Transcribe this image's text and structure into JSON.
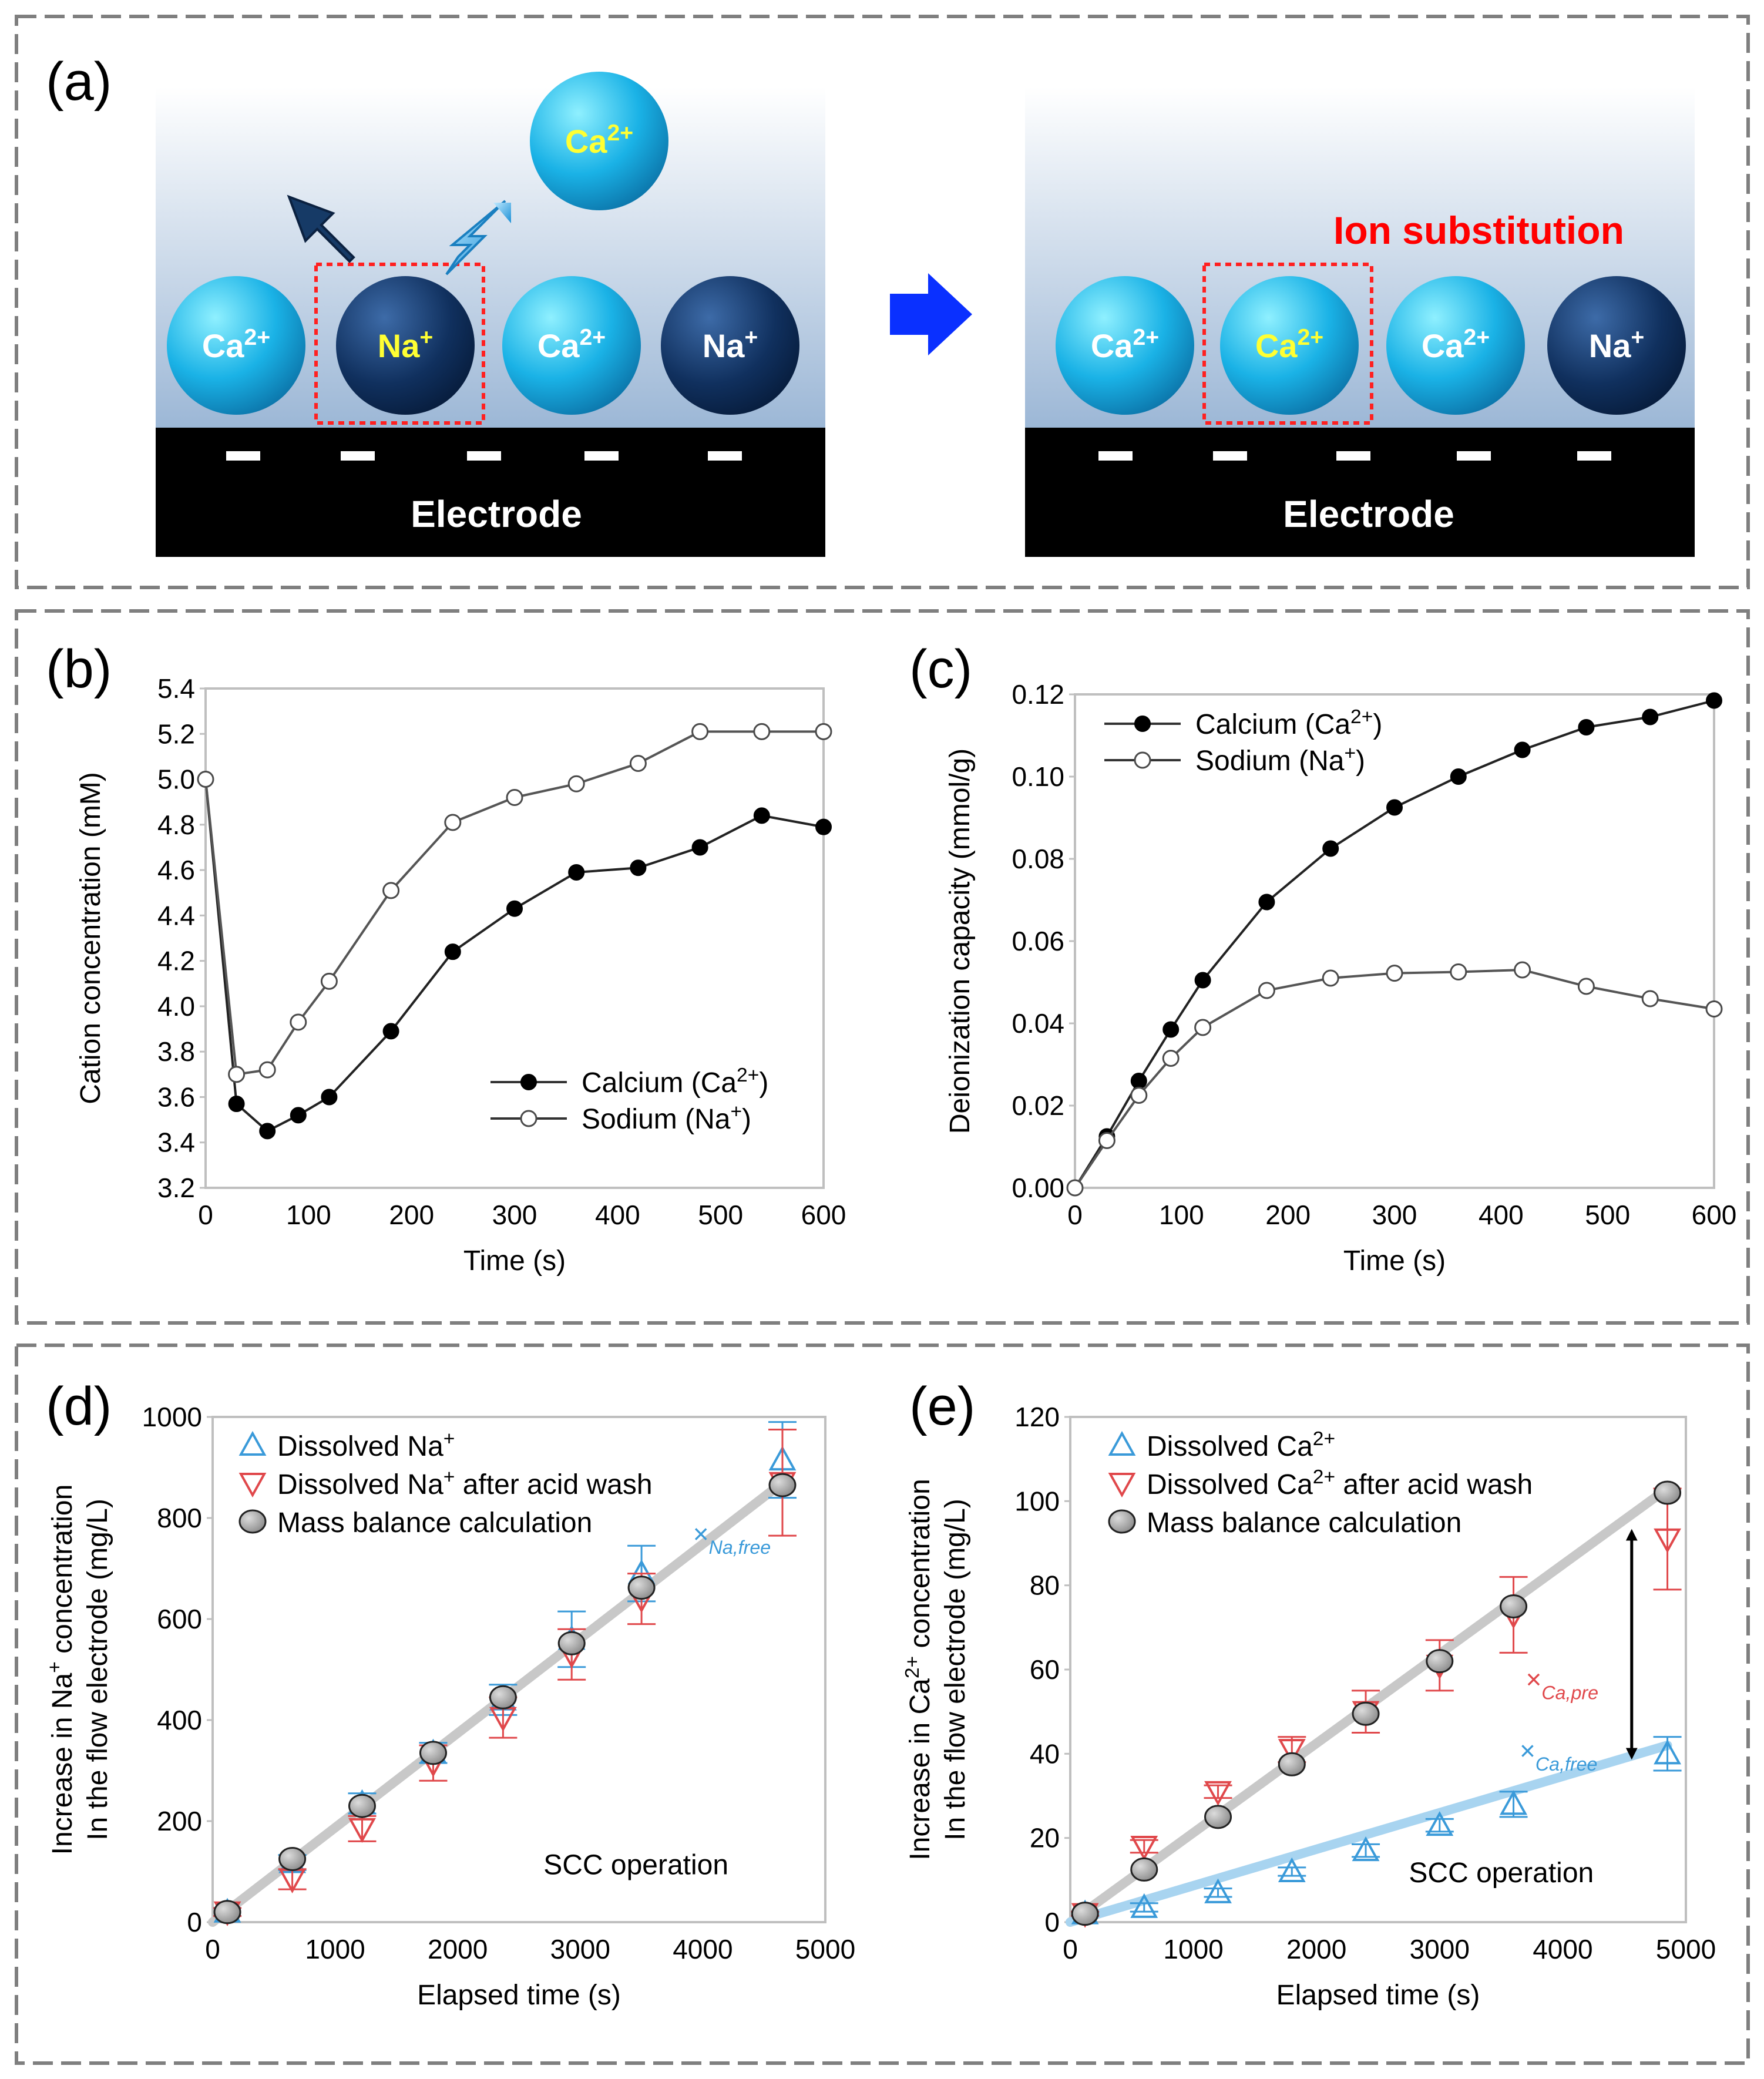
{
  "panels": {
    "a": {
      "label": "(a)",
      "electrode_label": "Electrode",
      "annotation": "Ion substitution",
      "incoming_ion": "Ca2+",
      "before_ions": [
        "Ca2+",
        "Na+",
        "Ca2+",
        "Na+"
      ],
      "after_ions": [
        "Ca2+",
        "Ca2+",
        "Ca2+",
        "Na+"
      ]
    },
    "b": {
      "label": "(b)"
    },
    "c": {
      "label": "(c)"
    },
    "d": {
      "label": "(d)",
      "note": "SCC operation",
      "annotation": "XNa,free"
    },
    "e": {
      "label": "(e)",
      "note": "SCC operation",
      "annotation_pre": "XCa,pre",
      "annotation_free": "XCa,free"
    }
  },
  "colors": {
    "calcium_ball": "#1ab2e6",
    "sodium_ball": "#10305e",
    "highlight": "#ffff33",
    "annotation_red": "#ff0000",
    "arrow_blue": "#0033ff",
    "triangle_blue": "#3a9ad9",
    "triangle_red": "#e0484b",
    "fit_gray": "#c8c8c8",
    "fit_blue": "#a8d4f0"
  },
  "chart_data": [
    {
      "id": "b",
      "type": "line",
      "xlabel": "Time (s)",
      "ylabel": "Cation concentration (mM)",
      "xlim": [
        0,
        600
      ],
      "ylim": [
        3.2,
        5.4
      ],
      "xticks": [
        0,
        100,
        200,
        300,
        400,
        500,
        600
      ],
      "yticks": [
        3.2,
        3.4,
        3.6,
        3.8,
        4.0,
        4.2,
        4.4,
        4.6,
        4.8,
        5.0,
        5.2,
        5.4
      ],
      "ytick_decimals": 1,
      "legend_position": "lower-right",
      "series": [
        {
          "name": "Calcium (Ca2+)",
          "marker": "filled-circle",
          "x": [
            0,
            30,
            60,
            90,
            120,
            180,
            240,
            300,
            360,
            420,
            480,
            540,
            600
          ],
          "y": [
            5.0,
            3.57,
            3.45,
            3.52,
            3.6,
            3.89,
            4.24,
            4.43,
            4.59,
            4.61,
            4.7,
            4.84,
            4.79
          ]
        },
        {
          "name": "Sodium (Na+)",
          "marker": "open-circle",
          "x": [
            0,
            30,
            60,
            90,
            120,
            180,
            240,
            300,
            360,
            420,
            480,
            540,
            600
          ],
          "y": [
            5.0,
            3.7,
            3.72,
            3.93,
            4.11,
            4.51,
            4.81,
            4.92,
            4.98,
            5.07,
            5.21,
            5.21,
            5.21
          ]
        }
      ]
    },
    {
      "id": "c",
      "type": "line",
      "xlabel": "Time (s)",
      "ylabel": "Deionization capacity (mmol/g)",
      "xlim": [
        0,
        600
      ],
      "ylim": [
        0,
        0.12
      ],
      "xticks": [
        0,
        100,
        200,
        300,
        400,
        500,
        600
      ],
      "yticks": [
        0,
        0.02,
        0.04,
        0.06,
        0.08,
        0.1,
        0.12
      ],
      "ytick_decimals": 2,
      "legend_position": "top-left",
      "series": [
        {
          "name": "Calcium (Ca2+)",
          "marker": "filled-circle",
          "x": [
            0,
            30,
            60,
            90,
            120,
            180,
            240,
            300,
            360,
            420,
            480,
            540,
            600
          ],
          "y": [
            0,
            0.0125,
            0.026,
            0.0385,
            0.0505,
            0.0695,
            0.0825,
            0.0925,
            0.1,
            0.1065,
            0.112,
            0.1145,
            0.1185
          ]
        },
        {
          "name": "Sodium (Na+)",
          "marker": "open-circle",
          "x": [
            0,
            30,
            60,
            90,
            120,
            180,
            240,
            300,
            360,
            420,
            480,
            540,
            600
          ],
          "y": [
            0,
            0.0115,
            0.0225,
            0.0315,
            0.039,
            0.048,
            0.051,
            0.0522,
            0.0525,
            0.053,
            0.049,
            0.046,
            0.0435
          ]
        }
      ]
    },
    {
      "id": "d",
      "type": "scatter",
      "xlabel": "Elapsed time (s)",
      "ylabel_line1": "Increase in Na+ concentration",
      "ylabel_line2": "In the flow electrode (mg/L)",
      "xlim": [
        0,
        5000
      ],
      "ylim": [
        0,
        1000
      ],
      "xticks": [
        0,
        1000,
        2000,
        3000,
        4000,
        5000
      ],
      "yticks": [
        0,
        200,
        400,
        600,
        800,
        1000
      ],
      "ytick_decimals": 0,
      "legend_position": "top-left",
      "fit_lines": [
        {
          "color": "#c8c8c8",
          "x": [
            0,
            4650
          ],
          "y": [
            0,
            870
          ]
        }
      ],
      "series": [
        {
          "name": "Dissolved Na+",
          "marker": "triangle-up",
          "color": "#3a9ad9",
          "x": [
            120,
            650,
            1220,
            1800,
            2370,
            2930,
            3500,
            4650
          ],
          "y": [
            20,
            118,
            235,
            335,
            440,
            560,
            690,
            915
          ],
          "err": [
            8,
            15,
            20,
            20,
            30,
            55,
            55,
            75
          ]
        },
        {
          "name": "Dissolved Na+ after acid wash",
          "marker": "triangle-down",
          "color": "#e0484b",
          "x": [
            120,
            650,
            1220,
            1800,
            2370,
            2930,
            3500,
            4650
          ],
          "y": [
            20,
            85,
            185,
            315,
            405,
            530,
            640,
            870
          ],
          "err": [
            8,
            20,
            25,
            35,
            40,
            50,
            50,
            105
          ]
        },
        {
          "name": "Mass balance calculation",
          "marker": "gray-circle",
          "x": [
            120,
            650,
            1220,
            1800,
            2370,
            2930,
            3500,
            4650
          ],
          "y": [
            20,
            125,
            230,
            335,
            445,
            552,
            662,
            865
          ]
        }
      ]
    },
    {
      "id": "e",
      "type": "scatter",
      "xlabel": "Elapsed time (s)",
      "ylabel_line1": "Increase in Ca2+ concentration",
      "ylabel_line2": "In the flow electrode (mg/L)",
      "xlim": [
        0,
        5000
      ],
      "ylim": [
        0,
        120
      ],
      "xticks": [
        0,
        1000,
        2000,
        3000,
        4000,
        5000
      ],
      "yticks": [
        0,
        20,
        40,
        60,
        80,
        100,
        120
      ],
      "ytick_decimals": 0,
      "legend_position": "top-left",
      "fit_lines": [
        {
          "color": "#c8c8c8",
          "x": [
            0,
            4850
          ],
          "y": [
            0,
            103
          ]
        },
        {
          "color": "#a8d4f0",
          "x": [
            0,
            4850
          ],
          "y": [
            0,
            42
          ]
        }
      ],
      "series": [
        {
          "name": "Dissolved Ca2+",
          "marker": "triangle-up",
          "color": "#3a9ad9",
          "x": [
            120,
            600,
            1200,
            1800,
            2400,
            3000,
            3600,
            4850
          ],
          "y": [
            2,
            3.5,
            7,
            12,
            17,
            23,
            28,
            40
          ],
          "err": [
            0.5,
            1,
            1,
            1,
            1.5,
            1.5,
            3,
            4
          ]
        },
        {
          "name": "Dissolved Ca2+ after acid wash",
          "marker": "triangle-down",
          "color": "#e0484b",
          "x": [
            120,
            600,
            1200,
            1800,
            2400,
            3000,
            3600,
            4850
          ],
          "y": [
            2,
            18,
            31,
            41,
            50,
            61,
            73,
            91
          ],
          "err": [
            0.5,
            1.5,
            1.5,
            3,
            5,
            6,
            9,
            12
          ]
        },
        {
          "name": "Mass balance calculation",
          "marker": "gray-circle",
          "x": [
            120,
            600,
            1200,
            1800,
            2400,
            3000,
            3600,
            4850
          ],
          "y": [
            2,
            12.5,
            25,
            37.5,
            49.5,
            62,
            75,
            102
          ]
        }
      ]
    }
  ]
}
